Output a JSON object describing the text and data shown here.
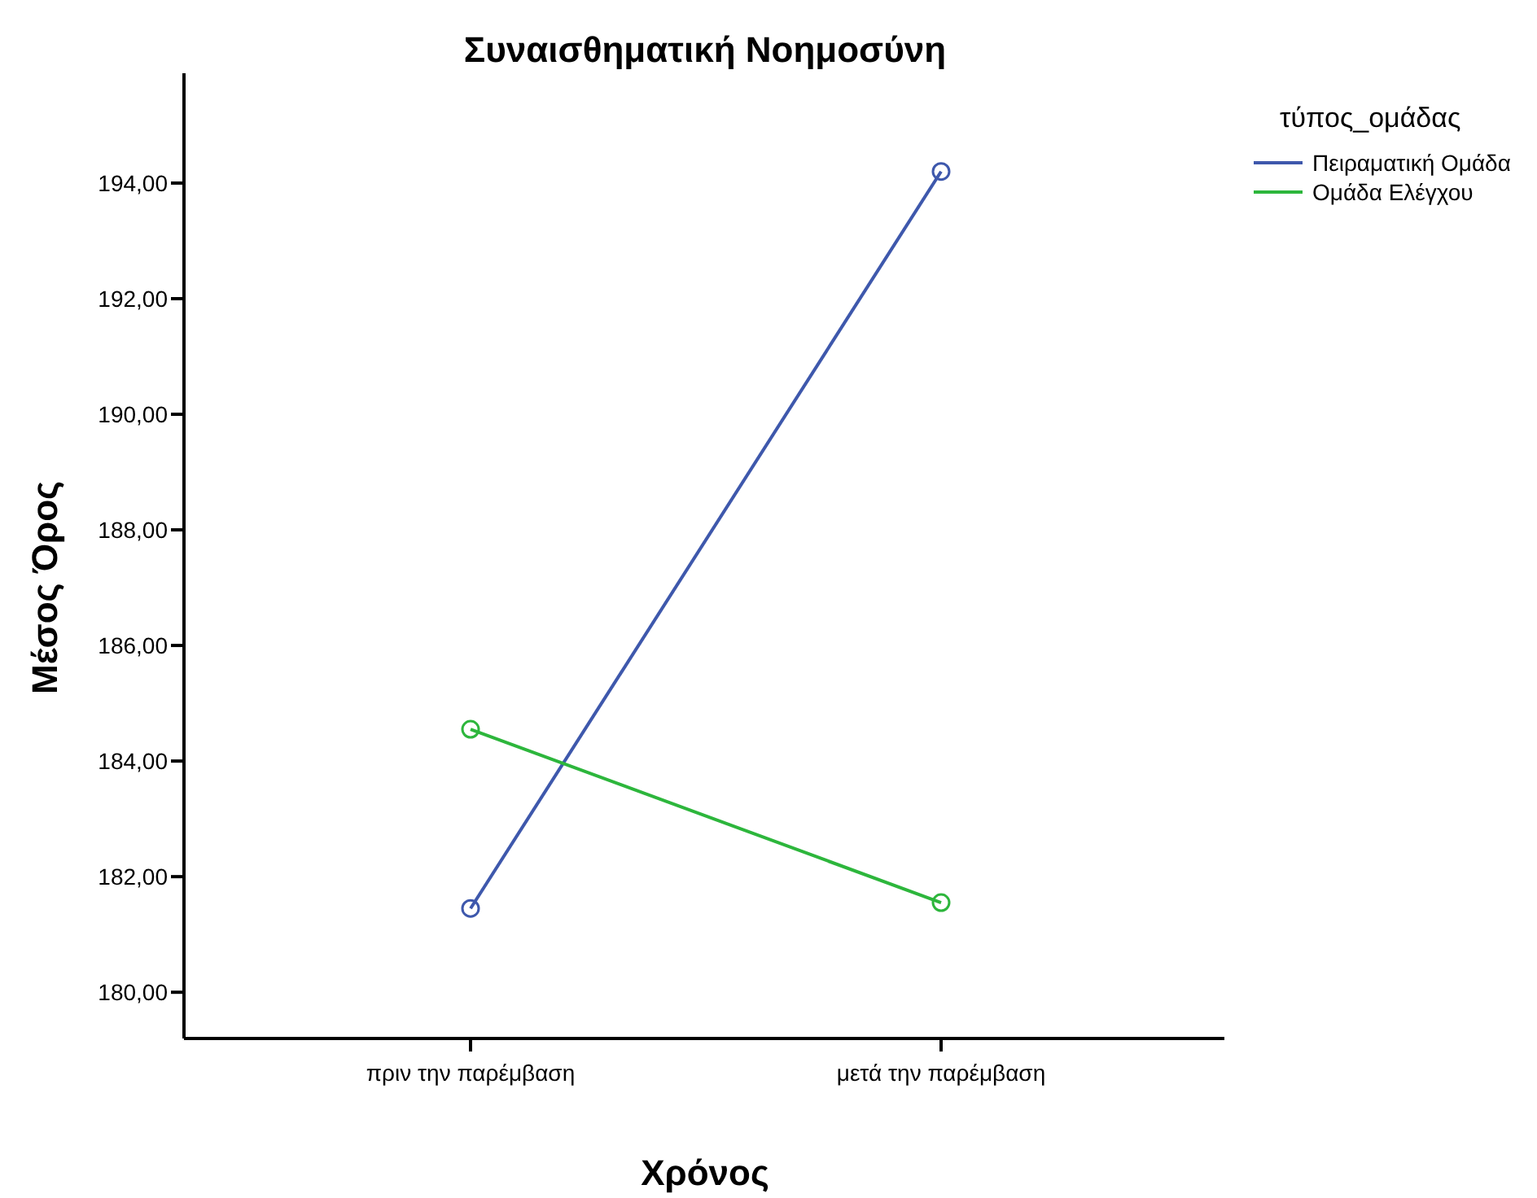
{
  "chart_data": {
    "type": "line",
    "title": "Συναισθηματική Νοημοσύνη",
    "xlabel": "Χρόνος",
    "ylabel": "Μέσος Όρος",
    "legend_title": "τύπος_ομάδας",
    "categories": [
      "πριν την παρέμβαση",
      "μετά την παρέμβαση"
    ],
    "series": [
      {
        "name": "Πειραματική Ομάδα",
        "color": "#3e58ac",
        "values": [
          181.45,
          194.2
        ]
      },
      {
        "name": "Ομάδα Ελέγχου",
        "color": "#2db63c",
        "values": [
          184.55,
          181.55
        ]
      }
    ],
    "ylim": [
      179.2,
      195.9
    ],
    "yticks": [
      {
        "value": 180,
        "label": "180,00"
      },
      {
        "value": 182,
        "label": "182,00"
      },
      {
        "value": 184,
        "label": "184,00"
      },
      {
        "value": 186,
        "label": "186,00"
      },
      {
        "value": 188,
        "label": "188,00"
      },
      {
        "value": 190,
        "label": "190,00"
      },
      {
        "value": 192,
        "label": "192,00"
      },
      {
        "value": 194,
        "label": "194,00"
      }
    ],
    "grid": false,
    "legend": "top right",
    "marker": "circle",
    "line_style": "solid"
  }
}
